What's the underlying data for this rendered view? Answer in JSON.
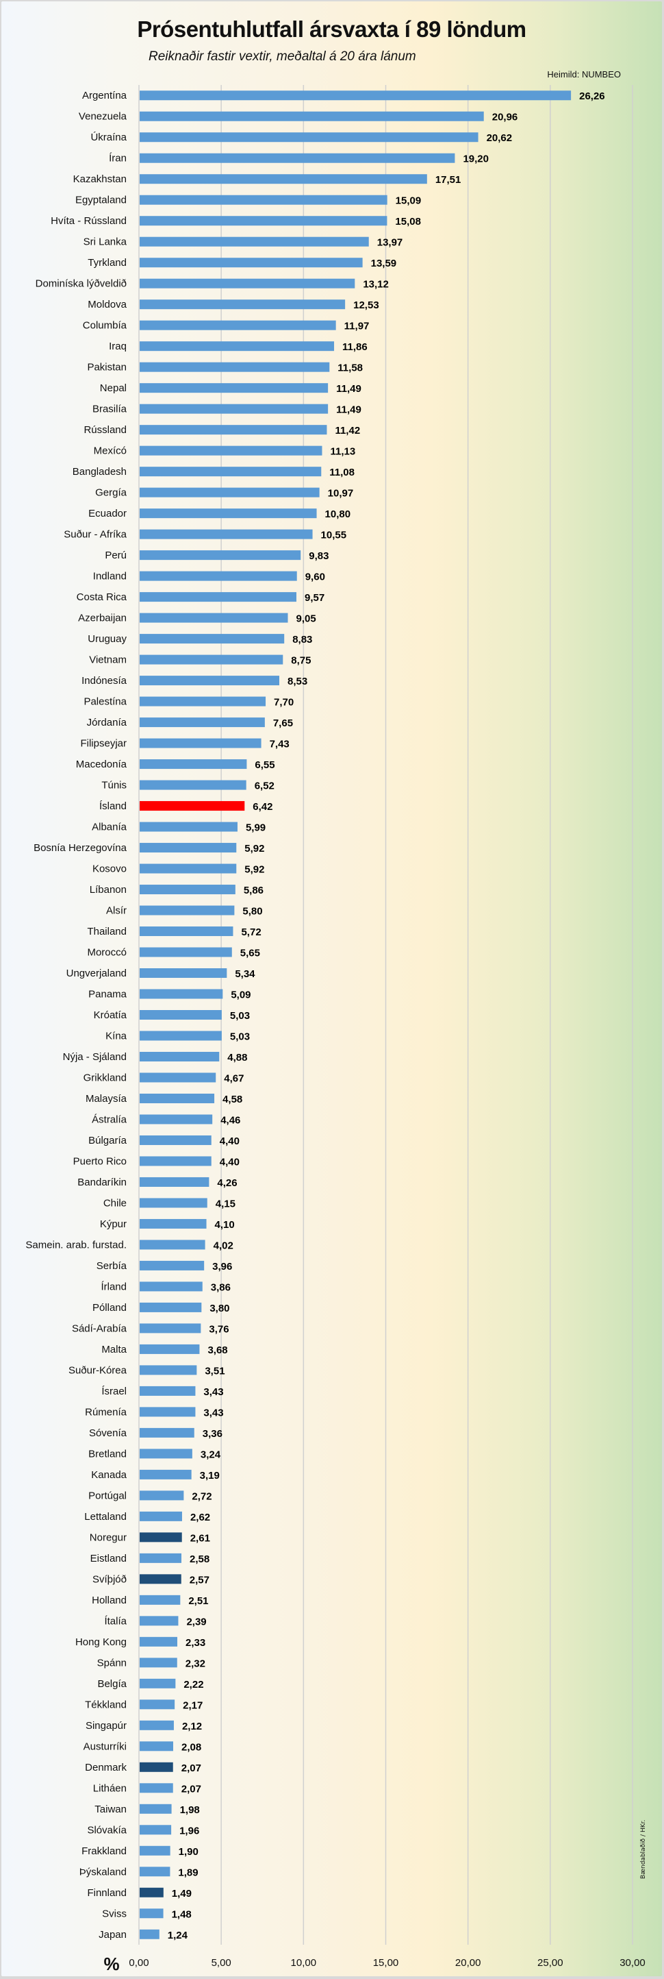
{
  "chart_data": {
    "type": "bar",
    "orientation": "horizontal",
    "title": "Prósentuhlutfall ársvaxta í 89 löndum",
    "subtitle": "Reiknaðir fastir vextir, meðaltal á 20 ára lánum",
    "source": "Heimild: NUMBEO",
    "credit": "Bændablaðið / HKr.",
    "xlabel": "%",
    "ylabel": "",
    "xlim": [
      0,
      30
    ],
    "xticks": [
      0,
      5,
      10,
      15,
      20,
      25,
      30
    ],
    "xtick_labels": [
      "0,00",
      "5,00",
      "10,00",
      "15,00",
      "20,00",
      "25,00",
      "30,00"
    ],
    "grid": "vertical",
    "legend": "none",
    "colors": {
      "default": "#5b9bd5",
      "iceland": "#ff0000",
      "nordic": "#1f4e79",
      "gridline": "#d0d0d0"
    },
    "categories": [
      "Argentína",
      "Venezuela",
      "Úkraína",
      "Íran",
      "Kazakhstan",
      "Egyptaland",
      "Hvíta - Rússland",
      "Sri Lanka",
      "Tyrkland",
      "Dominíska lýðveldið",
      "Moldova",
      "Columbía",
      "Iraq",
      "Pakistan",
      "Nepal",
      "Brasilía",
      "Rússland",
      "Mexícó",
      "Bangladesh",
      "Gergía",
      "Ecuador",
      "Suður - Afríka",
      "Perú",
      "Indland",
      "Costa Rica",
      "Azerbaijan",
      "Uruguay",
      "Vietnam",
      "Indónesía",
      "Palestína",
      "Jórdanía",
      "Filipseyjar",
      "Macedonía",
      "Túnis",
      "Ísland",
      "Albanía",
      "Bosnía Herzegovína",
      "Kosovo",
      "Líbanon",
      "Alsír",
      "Thailand",
      "Moroccó",
      "Ungverjaland",
      "Panama",
      "Króatía",
      "Kína",
      "Nýja - Sjáland",
      "Grikkland",
      "Malaysía",
      "Ástralía",
      "Búlgaría",
      "Puerto Rico",
      "Bandaríkin",
      "Chile",
      "Kýpur",
      "Samein. arab. furstad.",
      "Serbía",
      "Írland",
      "Pólland",
      "Sádí-Arabía",
      "Malta",
      "Suður-Kórea",
      "Ísrael",
      "Rúmenía",
      "Sóvenía",
      "Bretland",
      "Kanada",
      "Portúgal",
      "Lettaland",
      "Noregur",
      "Eistland",
      "Svíþjóð",
      "Holland",
      "Ítalía",
      "Hong Kong",
      "Spánn",
      "Belgía",
      "Tékkland",
      "Singapúr",
      "Austurríki",
      "Denmark",
      "Litháen",
      "Taiwan",
      "Slóvakía",
      "Frakkland",
      "Þýskaland",
      "Finnland",
      "Sviss",
      "Japan"
    ],
    "values": [
      26.26,
      20.96,
      20.62,
      19.2,
      17.51,
      15.09,
      15.08,
      13.97,
      13.59,
      13.12,
      12.53,
      11.97,
      11.86,
      11.58,
      11.49,
      11.49,
      11.42,
      11.13,
      11.08,
      10.97,
      10.8,
      10.55,
      9.83,
      9.6,
      9.57,
      9.05,
      8.83,
      8.75,
      8.53,
      7.7,
      7.65,
      7.43,
      6.55,
      6.52,
      6.42,
      5.99,
      5.92,
      5.92,
      5.86,
      5.8,
      5.72,
      5.65,
      5.34,
      5.09,
      5.03,
      5.03,
      4.88,
      4.67,
      4.58,
      4.46,
      4.4,
      4.4,
      4.26,
      4.15,
      4.1,
      4.02,
      3.96,
      3.86,
      3.8,
      3.76,
      3.68,
      3.51,
      3.43,
      3.43,
      3.36,
      3.24,
      3.19,
      2.72,
      2.62,
      2.61,
      2.58,
      2.57,
      2.51,
      2.39,
      2.33,
      2.32,
      2.22,
      2.17,
      2.12,
      2.08,
      2.07,
      2.07,
      1.98,
      1.96,
      1.9,
      1.89,
      1.49,
      1.48,
      1.24
    ],
    "value_labels": [
      "26,26",
      "20,96",
      "20,62",
      "19,20",
      "17,51",
      "15,09",
      "15,08",
      "13,97",
      "13,59",
      "13,12",
      "12,53",
      "11,97",
      "11,86",
      "11,58",
      "11,49",
      "11,49",
      "11,42",
      "11,13",
      "11,08",
      "10,97",
      "10,80",
      "10,55",
      "9,83",
      "9,60",
      "9,57",
      "9,05",
      "8,83",
      "8,75",
      "8,53",
      "7,70",
      "7,65",
      "7,43",
      "6,55",
      "6,52",
      "6,42",
      "5,99",
      "5,92",
      "5,92",
      "5,86",
      "5,80",
      "5,72",
      "5,65",
      "5,34",
      "5,09",
      "5,03",
      "5,03",
      "4,88",
      "4,67",
      "4,58",
      "4,46",
      "4,40",
      "4,40",
      "4,26",
      "4,15",
      "4,10",
      "4,02",
      "3,96",
      "3,86",
      "3,80",
      "3,76",
      "3,68",
      "3,51",
      "3,43",
      "3,43",
      "3,36",
      "3,24",
      "3,19",
      "2,72",
      "2,62",
      "2,61",
      "2,58",
      "2,57",
      "2,51",
      "2,39",
      "2,33",
      "2,32",
      "2,22",
      "2,17",
      "2,12",
      "2,08",
      "2,07",
      "2,07",
      "1,98",
      "1,96",
      "1,90",
      "1,89",
      "1,49",
      "1,48",
      "1,24"
    ],
    "highlight": {
      "iceland": [
        "Ísland"
      ],
      "nordic": [
        "Noregur",
        "Svíþjóð",
        "Denmark",
        "Finnland"
      ]
    }
  }
}
